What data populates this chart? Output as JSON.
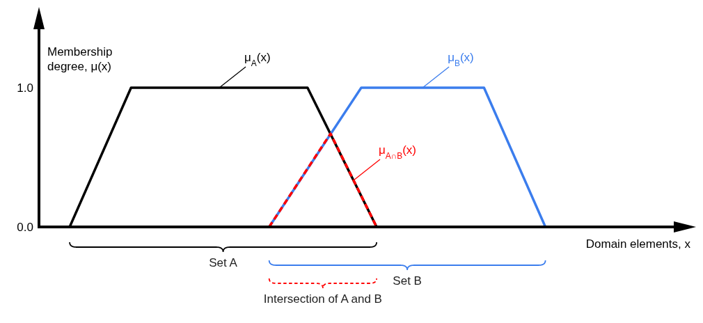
{
  "chart_data": {
    "type": "line",
    "xlabel": "Domain elements, x",
    "ylabel": "Membership degree, μ(x)",
    "categories": [
      null,
      null,
      null,
      null,
      null,
      null,
      null,
      null,
      null,
      null,
      null,
      null,
      null,
      null,
      null,
      null,
      null,
      null,
      null,
      null,
      null,
      null,
      null,
      null,
      null,
      null,
      null,
      null,
      null,
      null,
      null,
      null,
      null,
      null,
      null,
      null,
      null,
      null,
      null,
      null,
      null,
      null,
      null,
      null,
      null,
      null,
      null,
      null,
      null,
      null,
      null,
      null,
      null,
      null,
      null,
      null,
      null,
      null,
      null,
      null,
      null,
      null,
      null,
      null,
      null,
      null,
      null,
      null,
      null,
      null,
      null,
      null,
      null,
      null,
      null,
      null,
      null,
      null,
      null,
      null,
      null,
      null,
      null,
      null,
      null
    ],
    "series": [
      {
        "name": "μ$_{A}$(x)",
        "color": "#000000",
        "line_style": "solid",
        "values": [
          null,
          null,
          null,
          null,
          0,
          null,
          null,
          null,
          null,
          null,
          null,
          null,
          1,
          null,
          null,
          null,
          null,
          null,
          null,
          null,
          null,
          null,
          null,
          null,
          null,
          null,
          null,
          null,
          null,
          null,
          null,
          null,
          null,
          null,
          null,
          1,
          null,
          null,
          null,
          null,
          null,
          null,
          null,
          null,
          0,
          null,
          null,
          null,
          null,
          null,
          null,
          null,
          null,
          null,
          null,
          null,
          null,
          null,
          null,
          null,
          null,
          null,
          null,
          null,
          null,
          null,
          null,
          null,
          null,
          null,
          null,
          null,
          null,
          null,
          null,
          null,
          null,
          null,
          null,
          null,
          null,
          null,
          null,
          null,
          null
        ]
      },
      {
        "name": "μ$_{B}$(x)",
        "color": "#3b7ded",
        "line_style": "solid",
        "values": [
          null,
          null,
          null,
          null,
          null,
          null,
          null,
          null,
          null,
          null,
          null,
          null,
          null,
          null,
          null,
          null,
          null,
          null,
          null,
          null,
          null,
          null,
          null,
          null,
          null,
          null,
          null,
          null,
          null,
          null,
          0,
          null,
          null,
          null,
          null,
          null,
          null,
          null,
          null,
          null,
          null,
          null,
          1,
          null,
          null,
          null,
          null,
          null,
          null,
          null,
          null,
          null,
          null,
          null,
          null,
          null,
          null,
          null,
          1,
          null,
          null,
          null,
          null,
          null,
          null,
          null,
          0,
          null,
          null,
          null,
          null,
          null,
          null,
          null,
          null,
          null,
          null,
          null,
          null,
          null,
          null,
          null,
          null,
          null,
          null
        ]
      },
      {
        "name": "μ$_{A∩B}$(x)",
        "color": "#ff0000",
        "line_style": "dashed",
        "values": [
          null,
          null,
          null,
          null,
          null,
          null,
          null,
          null,
          null,
          null,
          null,
          null,
          null,
          null,
          null,
          null,
          null,
          null,
          null,
          null,
          null,
          null,
          null,
          null,
          null,
          null,
          null,
          null,
          null,
          null,
          0,
          null,
          null,
          null,
          null,
          null,
          null,
          null,
          0.67,
          null,
          null,
          null,
          null,
          null,
          0,
          null,
          null,
          null,
          null,
          null,
          null,
          null,
          null,
          null,
          null,
          null,
          null,
          null,
          null,
          null,
          null,
          null,
          null,
          null,
          null,
          null,
          null,
          null,
          null,
          null,
          null,
          null,
          null,
          null,
          null,
          null,
          null,
          null,
          null,
          null,
          null,
          null,
          null,
          null,
          null
        ]
      }
    ],
    "annotations": [
      "Set A",
      "Set B",
      "Intersection of A and B"
    ],
    "ylim": [
      0,
      1.5
    ],
    "yticks": [
      {
        "value": 0,
        "label": "0.0"
      },
      {
        "value": 1,
        "label": "1.0"
      }
    ],
    "tick_labels": "y",
    "marker": "none"
  }
}
